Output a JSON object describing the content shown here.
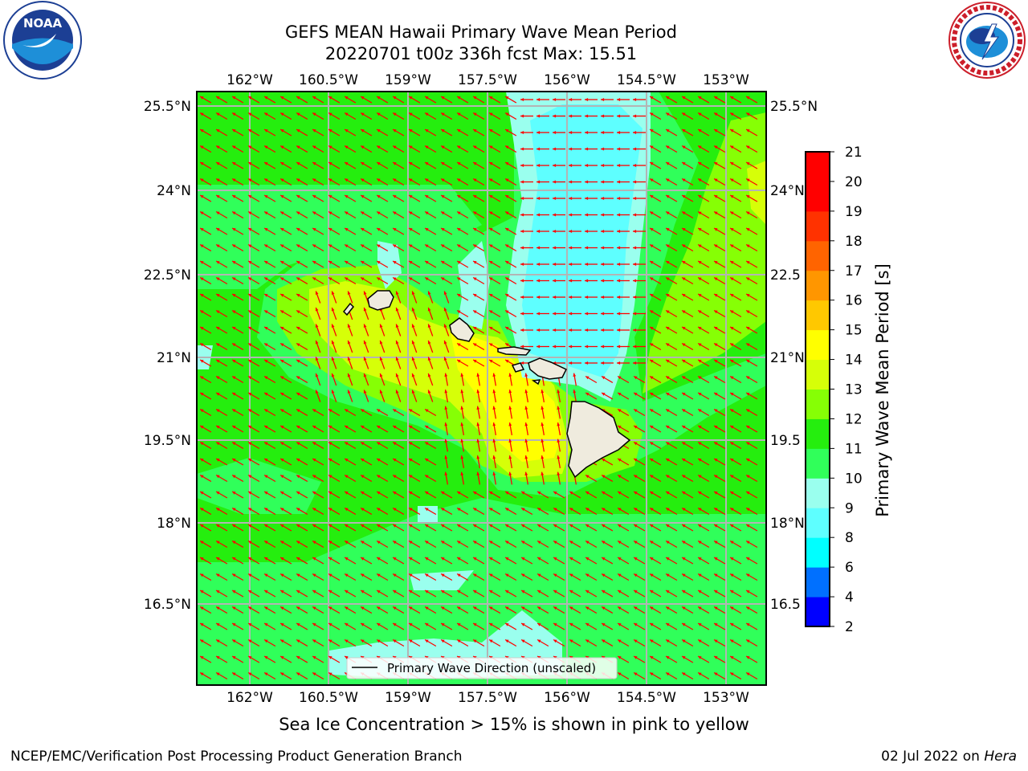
{
  "header": {
    "title_line1": "GEFS MEAN Hawaii Primary Wave Mean Period",
    "title_line2": "20220701 t00z 336h fcst   Max: 15.51"
  },
  "logos": {
    "left": "noaa-logo",
    "right": "nws-logo"
  },
  "map": {
    "lon_ticks": [
      "162°W",
      "160.5°W",
      "159°W",
      "157.5°W",
      "156°W",
      "154.5°W",
      "153°W"
    ],
    "lat_ticks": [
      "25.5°N",
      "24°N",
      "22.5°N",
      "21°N",
      "19.5°N",
      "18°N",
      "16.5°N"
    ],
    "right_lat_ticks": [
      "25.5°N",
      "24°N",
      "22.5",
      "21°N",
      "19.5",
      "18°N",
      "16.5"
    ],
    "legend_label": "Primary Wave Direction (unscaled)",
    "arrow_color": "#ff0000",
    "land_color": "#efebde",
    "grid_color": "#b4b4b4"
  },
  "colorbar": {
    "label": "Primary Wave Mean Period [s]",
    "ticks": [
      "2",
      "4",
      "6",
      "8",
      "9",
      "10",
      "11",
      "12",
      "13",
      "14",
      "15",
      "16",
      "17",
      "18",
      "19",
      "20",
      "21"
    ],
    "colors": [
      "#0000ff",
      "#0070ff",
      "#00ffff",
      "#5effff",
      "#9affee",
      "#30ff5a",
      "#25ee0e",
      "#86ff05",
      "#d6ff08",
      "#ffff00",
      "#ffc800",
      "#ff9600",
      "#ff6400",
      "#ff3200",
      "#ff0000"
    ]
  },
  "caption": "Sea Ice Concentration > 15% is shown in pink to yellow",
  "footer": {
    "left": "NCEP/EMC/Verification Post Processing Product Generation Branch",
    "date": "02 Jul 2022 on ",
    "host": "Hera"
  }
}
